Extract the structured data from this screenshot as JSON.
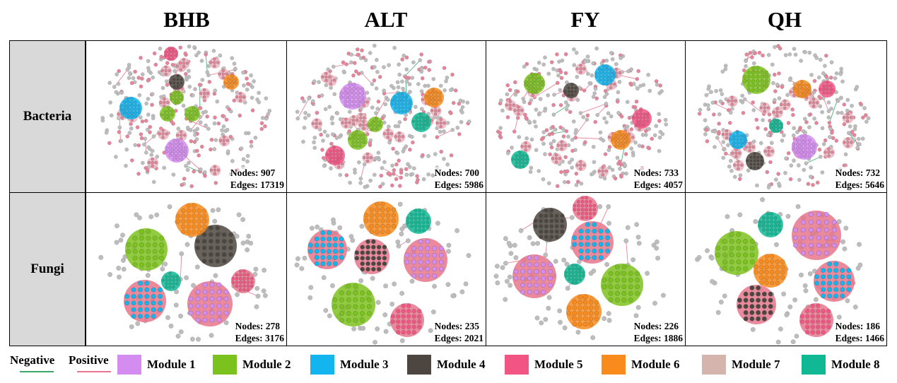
{
  "columns": [
    "BHB",
    "ALT",
    "FY",
    "QH"
  ],
  "rows": [
    "Bacteria",
    "Fungi"
  ],
  "networks": [
    [
      {
        "nodes_label": "Nodes: 907",
        "edges_label": "Edges: 17319",
        "nodes": 907,
        "edges": 17319
      },
      {
        "nodes_label": "Nodes: 700",
        "edges_label": "Edges: 5986",
        "nodes": 700,
        "edges": 5986
      },
      {
        "nodes_label": "Nodes: 733",
        "edges_label": "Edges: 4057",
        "nodes": 733,
        "edges": 4057
      },
      {
        "nodes_label": "Nodes: 732",
        "edges_label": "Edges: 5646",
        "nodes": 732,
        "edges": 5646
      }
    ],
    [
      {
        "nodes_label": "Nodes: 278",
        "edges_label": "Edges: 3176",
        "nodes": 278,
        "edges": 3176
      },
      {
        "nodes_label": "Nodes: 235",
        "edges_label": "Edges: 2021",
        "nodes": 235,
        "edges": 2021
      },
      {
        "nodes_label": "Nodes: 226",
        "edges_label": "Edges: 1886",
        "nodes": 226,
        "edges": 1886
      },
      {
        "nodes_label": "Nodes: 186",
        "edges_label": "Edges: 1466",
        "nodes": 186,
        "edges": 1466
      }
    ]
  ],
  "legend": {
    "negative": {
      "label": "Negative",
      "color": "#3aa86b"
    },
    "positive": {
      "label": "Positive",
      "color": "#e8778f"
    },
    "modules": [
      {
        "label": "Module 1",
        "color": "#d48cf0"
      },
      {
        "label": "Module 2",
        "color": "#7cc21e"
      },
      {
        "label": "Module 3",
        "color": "#13b5ee"
      },
      {
        "label": "Module 4",
        "color": "#4d4640"
      },
      {
        "label": "Module 5",
        "color": "#f25584"
      },
      {
        "label": "Module 6",
        "color": "#f98b1c"
      },
      {
        "label": "Module 7",
        "color": "#d6b4ae"
      },
      {
        "label": "Module 8",
        "color": "#10b894"
      }
    ]
  },
  "colors": {
    "node_gray": "#bdbdbd",
    "node_pink": "#e9839a",
    "row_label_bg": "#d9d9d9",
    "edge_pink": "#e8778f"
  }
}
